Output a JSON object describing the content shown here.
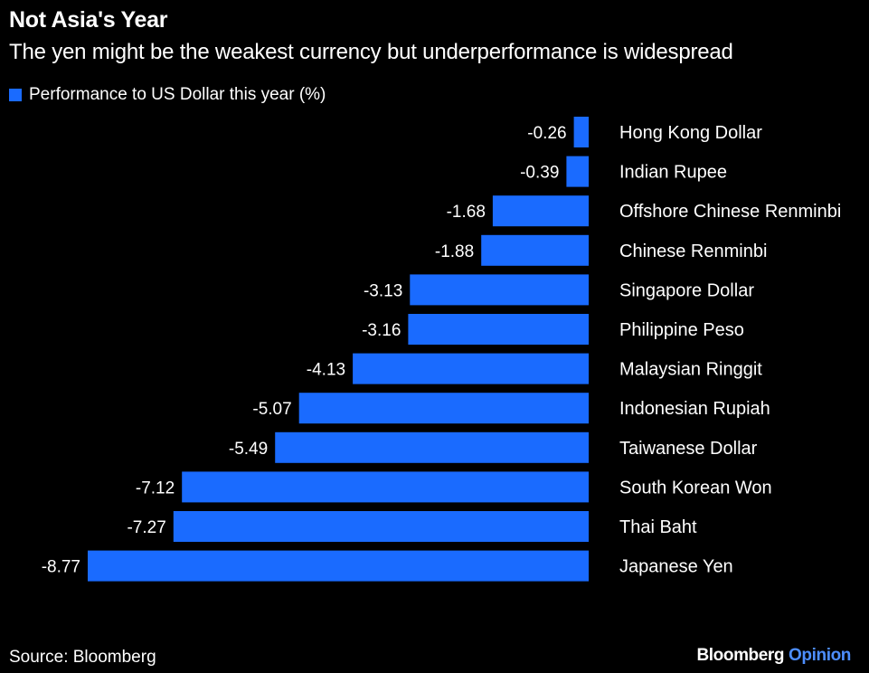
{
  "header": {
    "title": "Not Asia's Year",
    "subtitle": "The yen might be the weakest currency but underperformance is widespread"
  },
  "legend": {
    "label": "Performance to US Dollar this year (%)"
  },
  "footer": {
    "source": "Source: Bloomberg",
    "brand_main": "Bloomberg",
    "brand_accent": "Opinion"
  },
  "colors": {
    "background": "#000000",
    "bar": "#1a6bff",
    "text": "#ffffff",
    "brand_accent": "#4d8eff"
  },
  "chart_data": {
    "type": "bar",
    "orientation": "horizontal",
    "title": "Not Asia's Year",
    "subtitle": "The yen might be the weakest currency but underperformance is widespread",
    "categories": [
      "Hong Kong Dollar",
      "Indian Rupee",
      "Offshore Chinese Renminbi",
      "Chinese Renminbi",
      "Singapore Dollar",
      "Philippine Peso",
      "Malaysian Ringgit",
      "Indonesian Rupiah",
      "Taiwanese Dollar",
      "South Korean Won",
      "Thai Baht",
      "Japanese Yen"
    ],
    "series": [
      {
        "name": "Performance to US Dollar this year (%)",
        "values": [
          -0.26,
          -0.39,
          -1.68,
          -1.88,
          -3.13,
          -3.16,
          -4.13,
          -5.07,
          -5.49,
          -7.12,
          -7.27,
          -8.77
        ],
        "labels": [
          "-0.26",
          "-0.39",
          "-1.68",
          "-1.88",
          "-3.13",
          "-3.16",
          "-4.13",
          "-5.07",
          "-5.49",
          "-7.12",
          "-7.27",
          "-8.77"
        ]
      }
    ],
    "xlim": [
      -8.77,
      0
    ],
    "grid": false,
    "legend_position": "top-left"
  }
}
